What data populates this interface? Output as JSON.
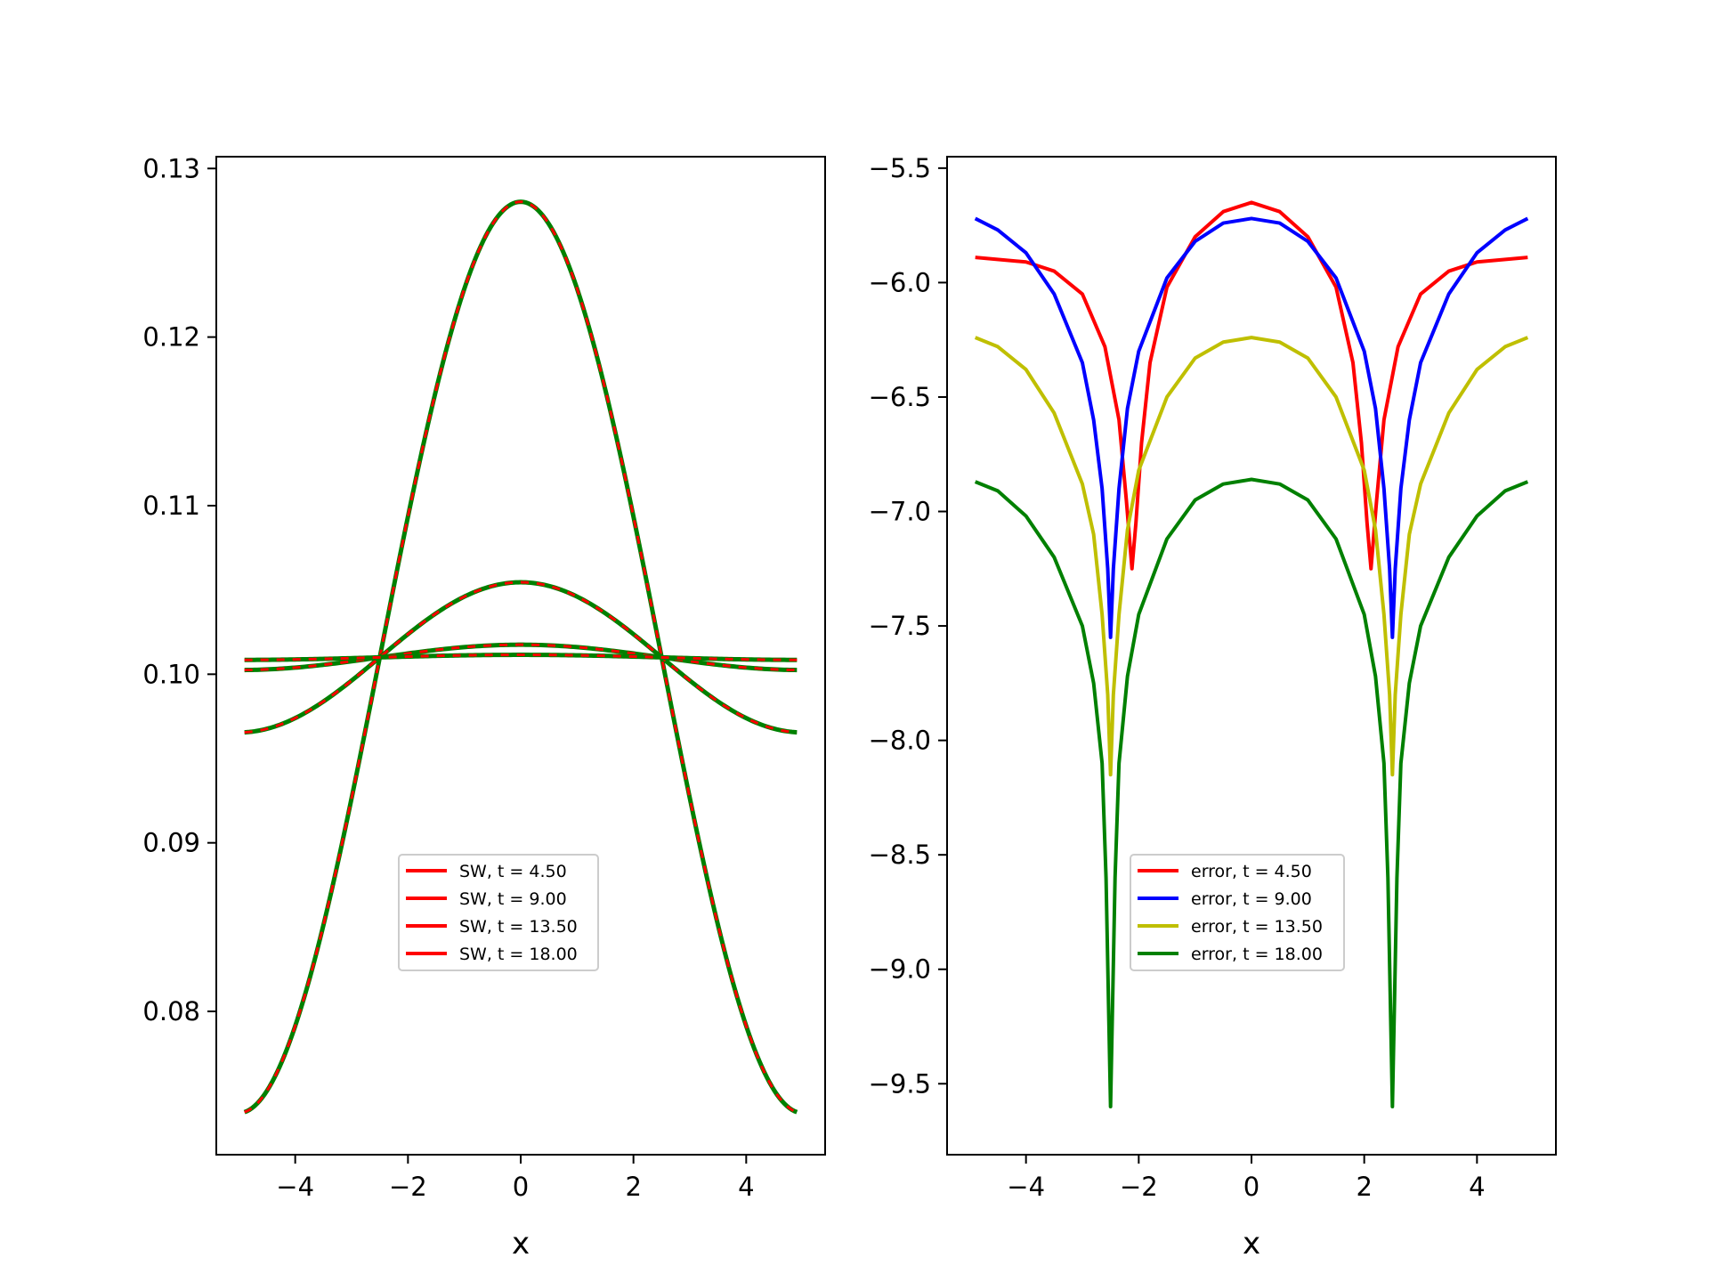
{
  "chart_data": [
    {
      "type": "line",
      "xlabel": "x",
      "ylabel": "",
      "xlim": [
        -5.4,
        5.4
      ],
      "ylim": [
        0.0715,
        0.1307
      ],
      "xticks": [
        -4,
        -2,
        0,
        2,
        4
      ],
      "xtick_labels": [
        "−4",
        "−2",
        "0",
        "2",
        "4"
      ],
      "yticks": [
        0.08,
        0.09,
        0.1,
        0.11,
        0.12,
        0.13
      ],
      "ytick_labels": [
        "0.08",
        "0.09",
        "0.10",
        "0.11",
        "0.12",
        "0.13"
      ],
      "grid": false,
      "legend_position": "lower-center",
      "model": {
        "mean": 0.101,
        "crossing_x": 2.5,
        "x_range": [
          -4.9,
          4.9
        ]
      },
      "series": [
        {
          "name": "SW, t = 4.50",
          "color": "#ff0000",
          "peak_value": 0.128,
          "edge_value": 0.074
        },
        {
          "name": "SW, t = 9.00",
          "color": "#ff0000",
          "peak_value": 0.1055,
          "edge_value": 0.0966
        },
        {
          "name": "SW, t = 13.50",
          "color": "#ff0000",
          "peak_value": 0.1018,
          "edge_value": 0.1003
        },
        {
          "name": "SW, t = 18.00",
          "color": "#ff0000",
          "peak_value": 0.1012,
          "edge_value": 0.1009
        }
      ],
      "overlay_color": "#008000"
    },
    {
      "type": "line",
      "xlabel": "x",
      "ylabel": "",
      "xlim": [
        -5.4,
        5.4
      ],
      "ylim": [
        -9.81,
        -5.45
      ],
      "xticks": [
        -4,
        -2,
        0,
        2,
        4
      ],
      "xtick_labels": [
        "−4",
        "−2",
        "0",
        "2",
        "4"
      ],
      "yticks": [
        -5.5,
        -6.0,
        -6.5,
        -7.0,
        -7.5,
        -8.0,
        -8.5,
        -9.0,
        -9.5
      ],
      "ytick_labels": [
        "−5.5",
        "−6.0",
        "−6.5",
        "−7.0",
        "−7.5",
        "−8.0",
        "−8.5",
        "−9.0",
        "−9.5"
      ],
      "grid": false,
      "legend_position": "lower-center",
      "series": [
        {
          "name": "error, t = 4.50",
          "color": "#ff0000",
          "x": [
            -4.9,
            -4.0,
            -3.5,
            -3.0,
            -2.6,
            -2.35,
            -2.22,
            -2.12,
            -2.05,
            -1.95,
            -1.8,
            -1.5,
            -1.0,
            -0.5,
            0.0,
            0.5,
            1.0,
            1.5,
            1.8,
            1.95,
            2.05,
            2.12,
            2.22,
            2.35,
            2.6,
            3.0,
            3.5,
            4.0,
            4.9
          ],
          "y": [
            -5.89,
            -5.91,
            -5.95,
            -6.05,
            -6.28,
            -6.6,
            -6.95,
            -7.25,
            -7.05,
            -6.7,
            -6.35,
            -6.02,
            -5.8,
            -5.69,
            -5.65,
            -5.69,
            -5.8,
            -6.02,
            -6.35,
            -6.7,
            -7.05,
            -7.25,
            -6.95,
            -6.6,
            -6.28,
            -6.05,
            -5.95,
            -5.91,
            -5.89
          ]
        },
        {
          "name": "error, t = 9.00",
          "color": "#0000ff",
          "x": [
            -4.9,
            -4.5,
            -4.0,
            -3.5,
            -3.0,
            -2.8,
            -2.65,
            -2.55,
            -2.5,
            -2.45,
            -2.35,
            -2.2,
            -2.0,
            -1.5,
            -1.0,
            -0.5,
            0.0,
            0.5,
            1.0,
            1.5,
            2.0,
            2.2,
            2.35,
            2.45,
            2.5,
            2.55,
            2.65,
            2.8,
            3.0,
            3.5,
            4.0,
            4.5,
            4.9
          ],
          "y": [
            -5.72,
            -5.77,
            -5.87,
            -6.05,
            -6.35,
            -6.6,
            -6.9,
            -7.25,
            -7.55,
            -7.25,
            -6.9,
            -6.55,
            -6.3,
            -5.98,
            -5.82,
            -5.74,
            -5.72,
            -5.74,
            -5.82,
            -5.98,
            -6.3,
            -6.55,
            -6.9,
            -7.25,
            -7.55,
            -7.25,
            -6.9,
            -6.6,
            -6.35,
            -6.05,
            -5.87,
            -5.77,
            -5.72
          ]
        },
        {
          "name": "error, t = 13.50",
          "color": "#bfbf00",
          "x": [
            -4.9,
            -4.5,
            -4.0,
            -3.5,
            -3.0,
            -2.8,
            -2.65,
            -2.55,
            -2.5,
            -2.45,
            -2.35,
            -2.2,
            -2.0,
            -1.5,
            -1.0,
            -0.5,
            0.0,
            0.5,
            1.0,
            1.5,
            2.0,
            2.2,
            2.35,
            2.45,
            2.5,
            2.55,
            2.65,
            2.8,
            3.0,
            3.5,
            4.0,
            4.5,
            4.9
          ],
          "y": [
            -6.24,
            -6.28,
            -6.38,
            -6.57,
            -6.88,
            -7.1,
            -7.45,
            -7.8,
            -8.15,
            -7.8,
            -7.45,
            -7.08,
            -6.82,
            -6.5,
            -6.33,
            -6.26,
            -6.24,
            -6.26,
            -6.33,
            -6.5,
            -6.82,
            -7.08,
            -7.45,
            -7.8,
            -8.15,
            -7.8,
            -7.45,
            -7.1,
            -6.88,
            -6.57,
            -6.38,
            -6.28,
            -6.24
          ]
        },
        {
          "name": "error, t = 18.00",
          "color": "#008000",
          "x": [
            -4.9,
            -4.5,
            -4.0,
            -3.5,
            -3.0,
            -2.8,
            -2.65,
            -2.58,
            -2.54,
            -2.5,
            -2.46,
            -2.42,
            -2.35,
            -2.2,
            -2.0,
            -1.5,
            -1.0,
            -0.5,
            0.0,
            0.5,
            1.0,
            1.5,
            2.0,
            2.2,
            2.35,
            2.42,
            2.46,
            2.5,
            2.54,
            2.58,
            2.65,
            2.8,
            3.0,
            3.5,
            4.0,
            4.5,
            4.9
          ],
          "y": [
            -6.87,
            -6.91,
            -7.02,
            -7.2,
            -7.5,
            -7.75,
            -8.1,
            -8.6,
            -9.1,
            -9.6,
            -9.1,
            -8.6,
            -8.1,
            -7.72,
            -7.45,
            -7.12,
            -6.95,
            -6.88,
            -6.86,
            -6.88,
            -6.95,
            -7.12,
            -7.45,
            -7.72,
            -8.1,
            -8.6,
            -9.1,
            -9.6,
            -9.1,
            -8.6,
            -8.1,
            -7.75,
            -7.5,
            -7.2,
            -7.02,
            -6.91,
            -6.87
          ]
        }
      ]
    }
  ]
}
